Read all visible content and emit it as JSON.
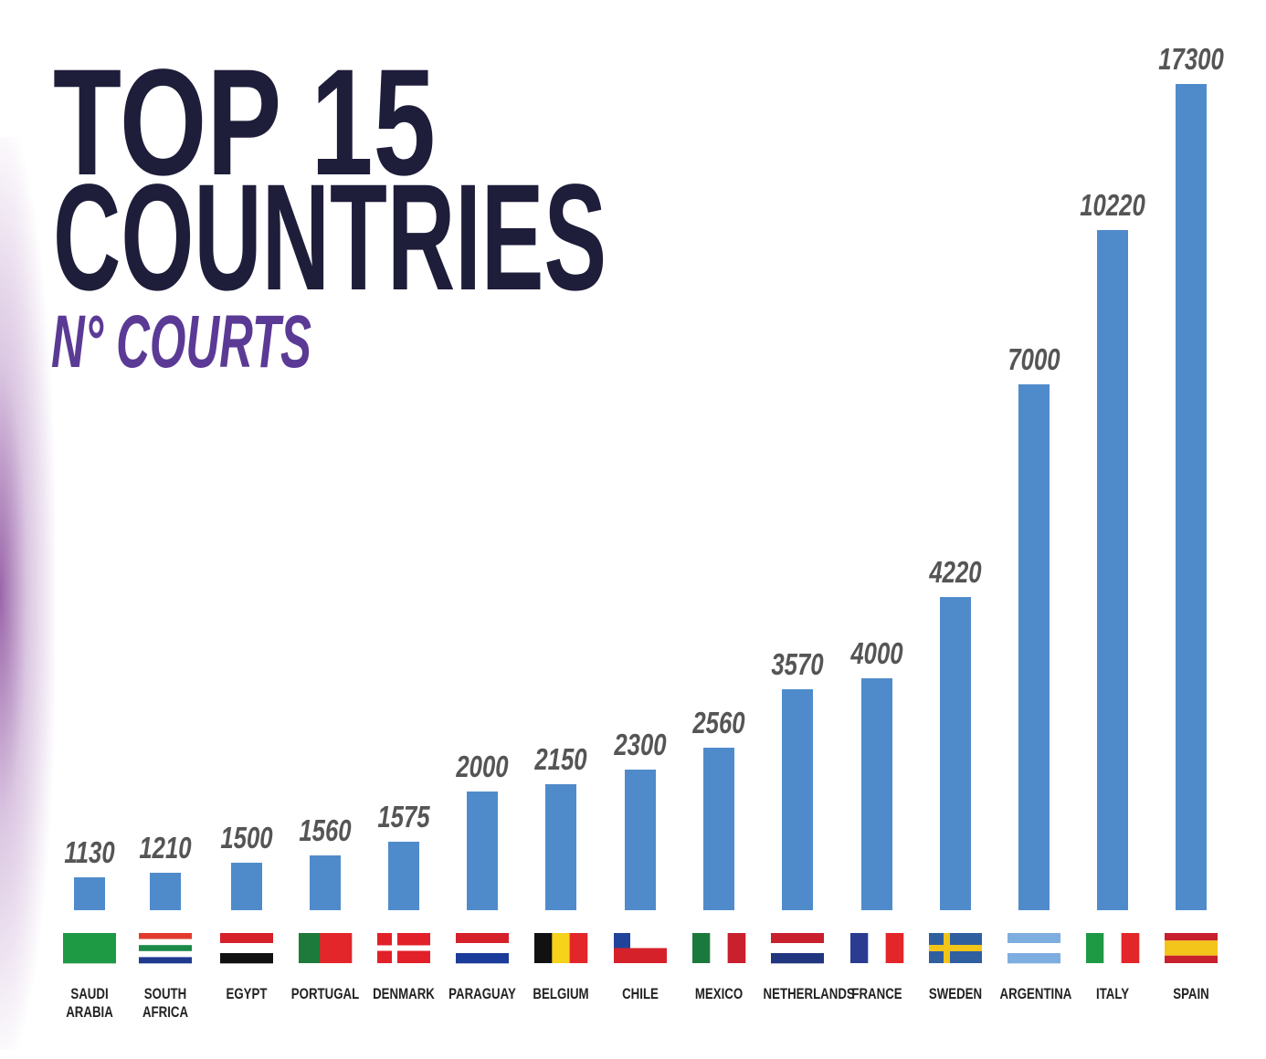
{
  "title_line1": "TOP 15",
  "title_line2": "COUNTRIES",
  "subtitle": "N° COURTS",
  "colors": {
    "bar": "#4f8bcb",
    "title": "#1e1d3a",
    "subtitle": "#5b3a96",
    "value": "#555555"
  },
  "chart_data": {
    "type": "bar",
    "title": "TOP 15 COUNTRIES",
    "subtitle": "N° COURTS",
    "categories": [
      "SAUDI ARABIA",
      "SOUTH AFRICA",
      "EGYPT",
      "PORTUGAL",
      "DENMARK",
      "PARAGUAY",
      "BELGIUM",
      "CHILE",
      "MEXICO",
      "NETHERLANDS",
      "FRANCE",
      "SWEDEN",
      "ARGENTINA",
      "ITALY",
      "SPAIN"
    ],
    "values": [
      1130,
      1210,
      1500,
      1560,
      1575,
      2000,
      2150,
      2300,
      2560,
      3570,
      4000,
      4220,
      7000,
      10220,
      17300
    ],
    "data_labels": [
      "1130",
      "1210",
      "1500",
      "1560",
      "1575",
      "2000",
      "2150",
      "2300",
      "2560",
      "3570",
      "4000",
      "4220",
      "7000",
      "10220",
      "17300"
    ],
    "icons": [
      "flag-saudi-arabia",
      "flag-south-africa",
      "flag-egypt",
      "flag-portugal",
      "flag-denmark",
      "flag-paraguay",
      "flag-belgium",
      "flag-chile",
      "flag-mexico",
      "flag-netherlands",
      "flag-france",
      "flag-sweden",
      "flag-argentina",
      "flag-italy",
      "flag-spain"
    ],
    "grid": false,
    "legend": "none"
  }
}
